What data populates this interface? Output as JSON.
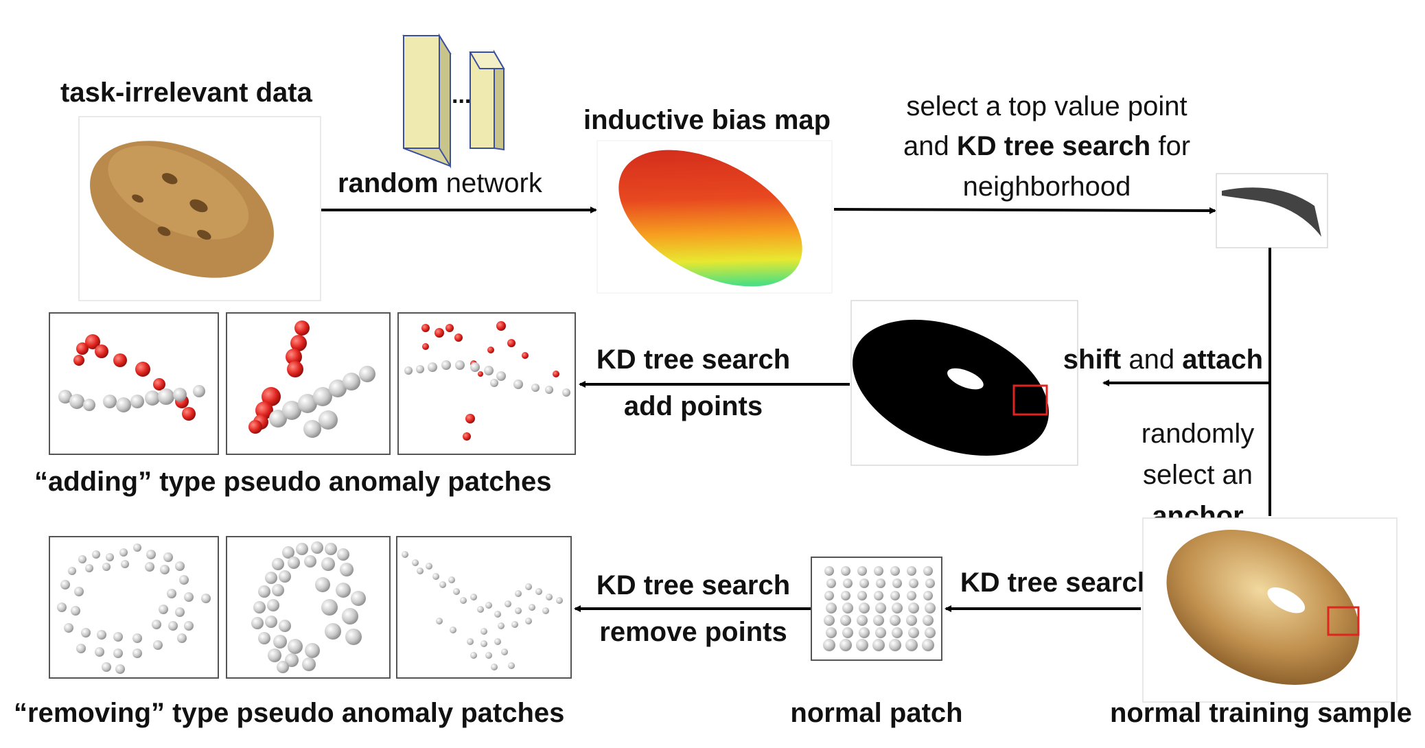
{
  "labels": {
    "task_irrelevant": "task-irrelevant data",
    "random_bold": "random",
    "random_rest": " network",
    "dots": "...",
    "inductive_bias_map": "inductive bias map",
    "select_line1": "select a top value point",
    "select_line2_pre": "and ",
    "select_line2_bold": "KD tree search",
    "select_line2_post": " for",
    "select_line3": "neighborhood",
    "shift_bold": "shift",
    "shift_and": " and ",
    "attach_bold": "attach",
    "kd_add_line1": "KD tree search",
    "kd_add_line2": "add points",
    "randomly_line1": "randomly",
    "randomly_line2": "select an",
    "anchor": "anchor",
    "adding_caption": "“adding” type pseudo anomaly patches",
    "kd_remove_line1": "KD tree search",
    "kd_remove_line2": "remove points",
    "kd_normal": "KD tree search",
    "removing_caption": "“removing” type pseudo anomaly patches",
    "normal_patch": "normal patch",
    "normal_training_sample": "normal training sample"
  },
  "colors": {
    "cookie": "#b98a4c",
    "cookie_dark": "#6e4a22",
    "network_block": "#eeeab0",
    "network_edge": "#3a4fa0",
    "bagel": "#b98b52",
    "anomaly_point": "#e0241f",
    "normal_point": "#c9c9c9",
    "highlight_box": "#e0241f",
    "arrow": "#000000"
  }
}
